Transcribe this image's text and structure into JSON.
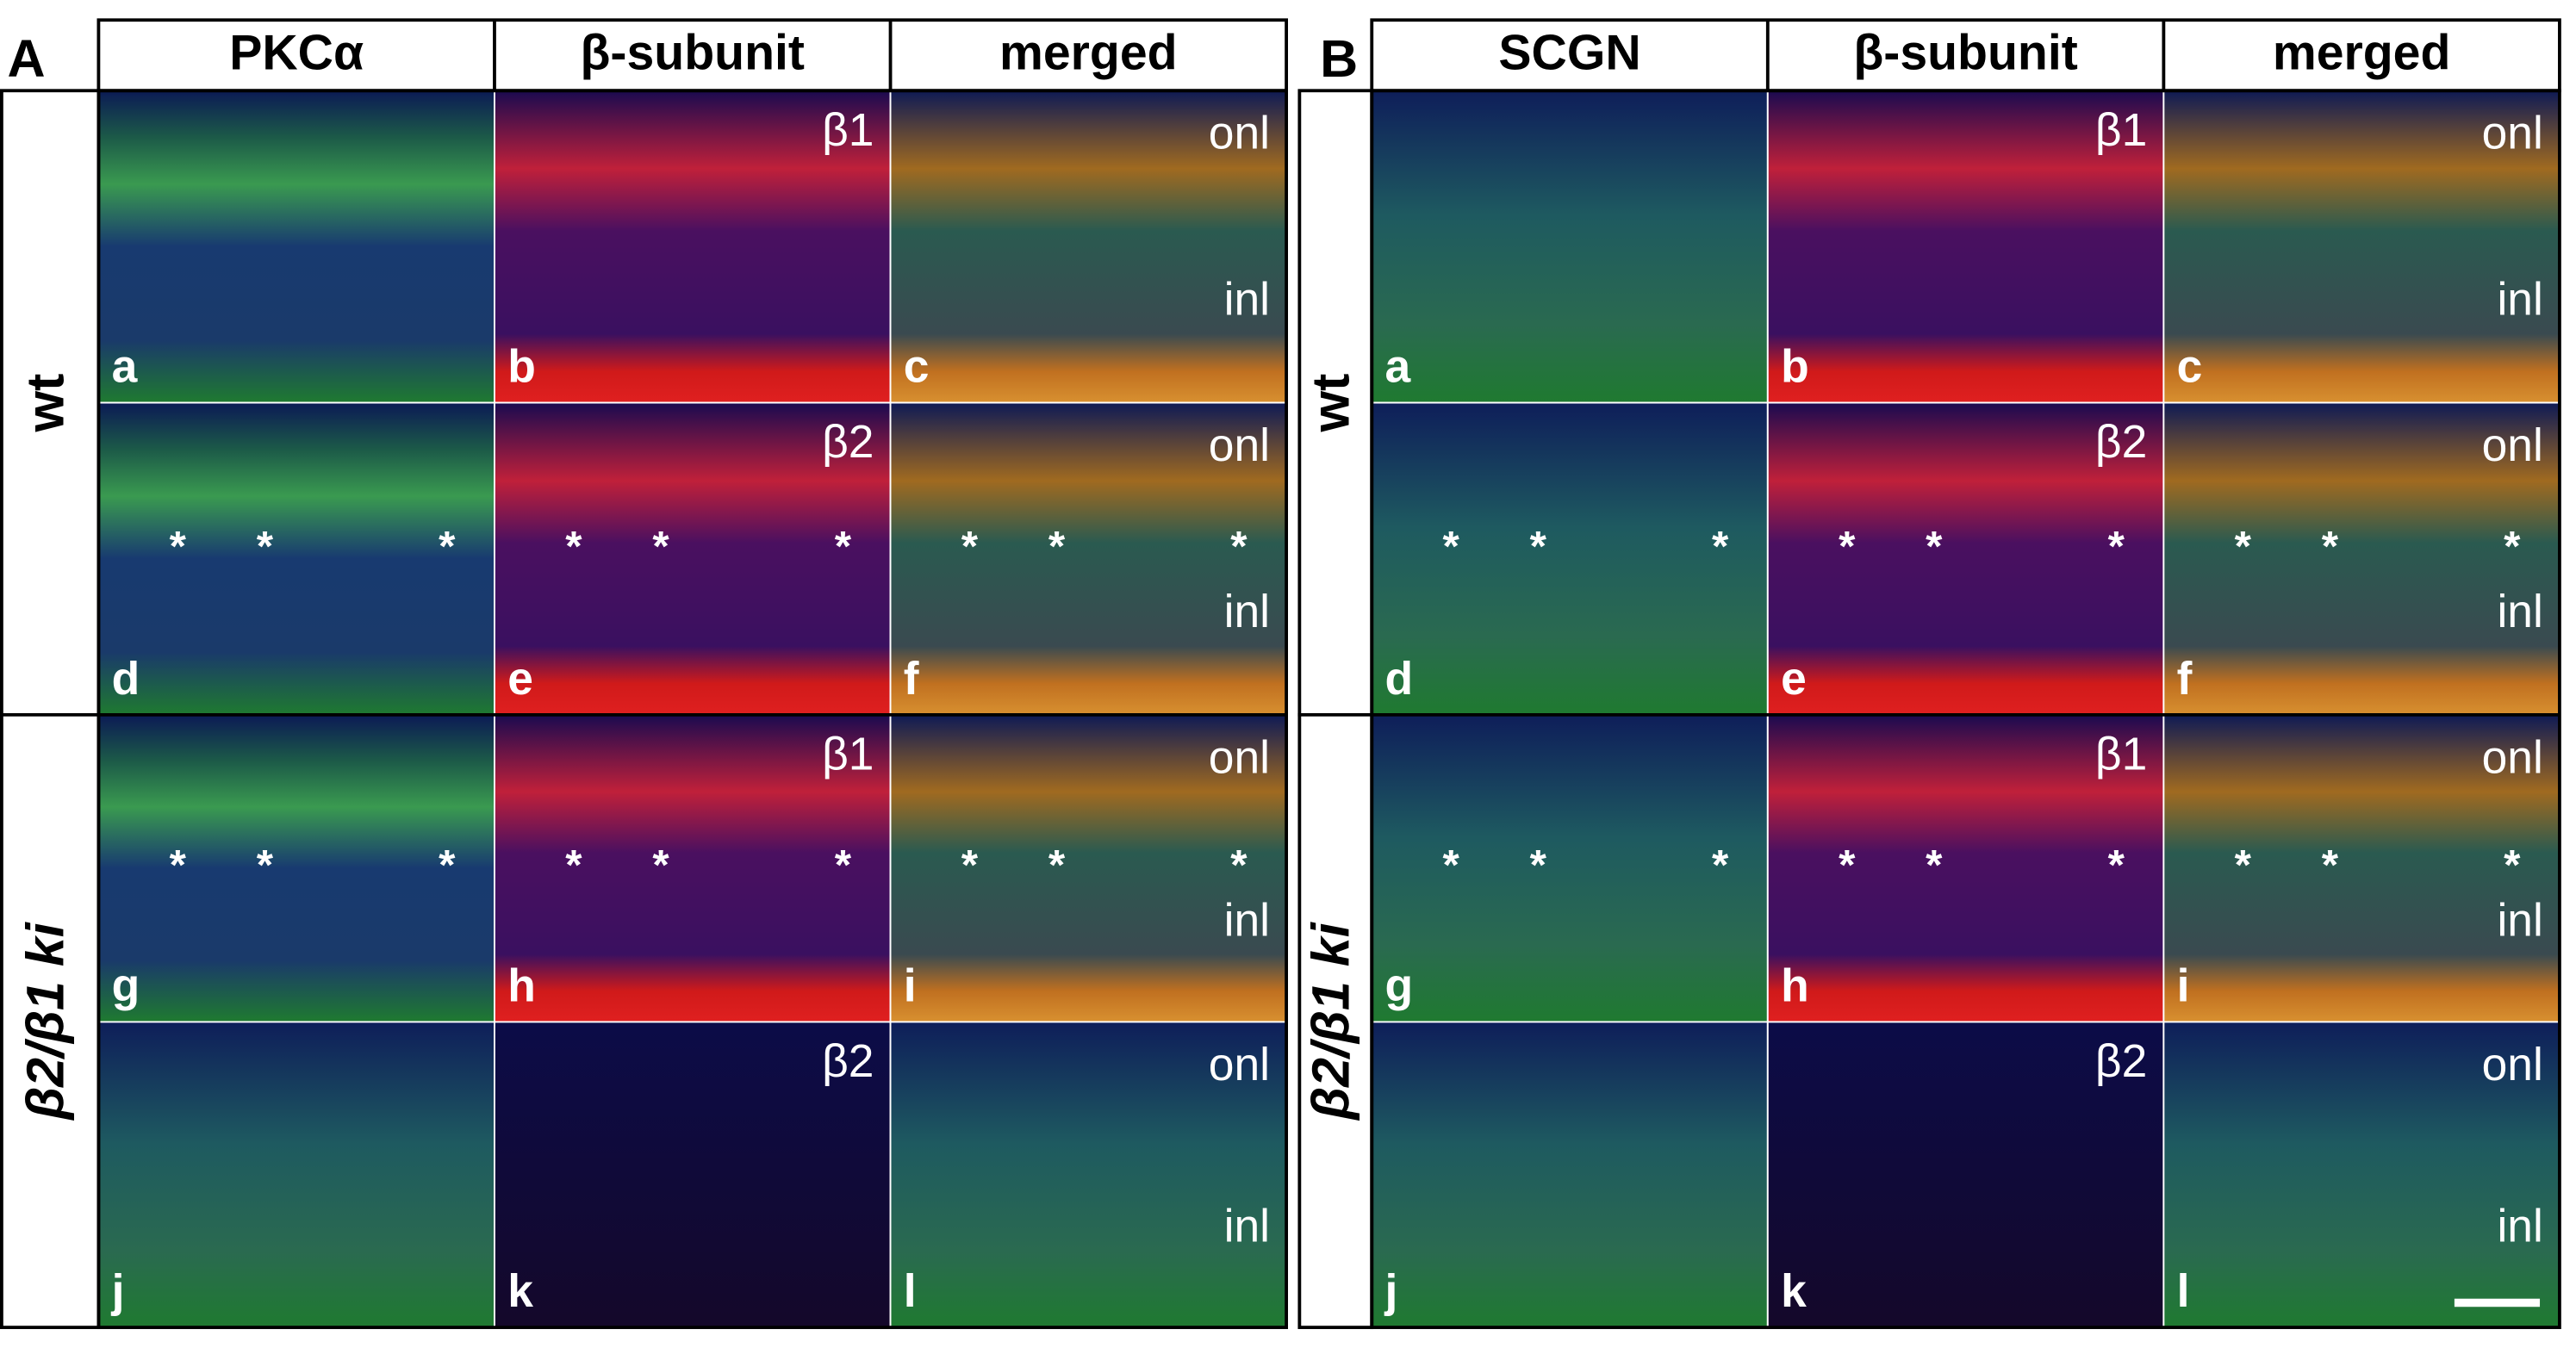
{
  "panels": [
    {
      "label": "A",
      "columns": [
        "PKCα",
        "β-subunit",
        "merged"
      ],
      "row_groups": [
        "wt",
        "β2/β1 ki"
      ],
      "rows": [
        {
          "cells": [
            {
              "letter": "a"
            },
            {
              "letter": "b",
              "tag": "β1"
            },
            {
              "letter": "c",
              "layers": [
                "onl",
                "inl"
              ]
            }
          ]
        },
        {
          "cells": [
            {
              "letter": "d"
            },
            {
              "letter": "e",
              "tag": "β2"
            },
            {
              "letter": "f",
              "layers": [
                "onl",
                "inl"
              ]
            }
          ]
        },
        {
          "cells": [
            {
              "letter": "g"
            },
            {
              "letter": "h",
              "tag": "β1"
            },
            {
              "letter": "i",
              "layers": [
                "onl",
                "inl"
              ]
            }
          ]
        },
        {
          "cells": [
            {
              "letter": "j"
            },
            {
              "letter": "k",
              "tag": "β2"
            },
            {
              "letter": "l",
              "layers": [
                "onl",
                "inl"
              ]
            }
          ]
        }
      ]
    },
    {
      "label": "B",
      "columns": [
        "SCGN",
        "β-subunit",
        "merged"
      ],
      "row_groups": [
        "wt",
        "β2/β1 ki"
      ],
      "rows": [
        {
          "cells": [
            {
              "letter": "a"
            },
            {
              "letter": "b",
              "tag": "β1"
            },
            {
              "letter": "c",
              "layers": [
                "onl",
                "inl"
              ]
            }
          ]
        },
        {
          "cells": [
            {
              "letter": "d"
            },
            {
              "letter": "e",
              "tag": "β2"
            },
            {
              "letter": "f",
              "layers": [
                "onl",
                "inl"
              ]
            }
          ]
        },
        {
          "cells": [
            {
              "letter": "g"
            },
            {
              "letter": "h",
              "tag": "β1"
            },
            {
              "letter": "i",
              "layers": [
                "onl",
                "inl"
              ]
            }
          ]
        },
        {
          "cells": [
            {
              "letter": "j"
            },
            {
              "letter": "k",
              "tag": "β2"
            },
            {
              "letter": "l",
              "layers": [
                "onl",
                "inl"
              ]
            }
          ]
        }
      ]
    }
  ],
  "asterisk": "*"
}
